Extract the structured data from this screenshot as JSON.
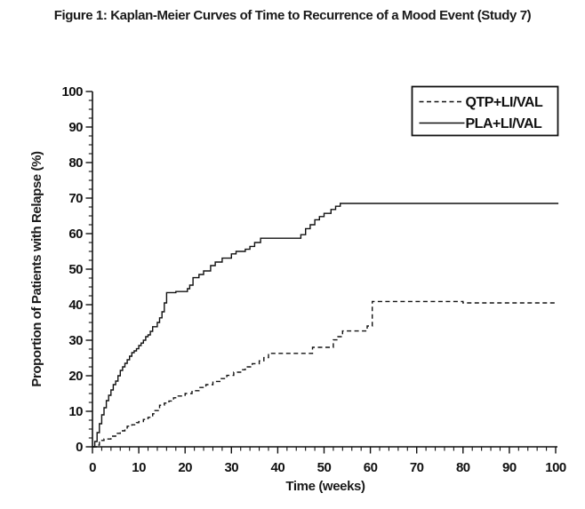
{
  "figure": {
    "title": "Figure 1: Kaplan-Meier Curves of Time to Recurrence of a Mood Event (Study 7)"
  },
  "chart_data": {
    "type": "line",
    "subtype": "kaplan-meier-step",
    "title": "Figure 1: Kaplan-Meier Curves of Time to Recurrence of a Mood Event (Study 7)",
    "xlabel": "Time (weeks)",
    "ylabel": "Proportion of Patients with Relapse (%)",
    "xlim": [
      0,
      100
    ],
    "ylim": [
      0,
      100
    ],
    "grid": false,
    "legend_position": "top-right",
    "x_major_ticks": [
      0,
      10,
      20,
      30,
      40,
      50,
      60,
      70,
      80,
      90,
      100
    ],
    "y_major_ticks": [
      0,
      10,
      20,
      30,
      40,
      50,
      60,
      70,
      80,
      90,
      100
    ],
    "x_minor_step": 2,
    "y_minor_step": 2.5,
    "colors": {
      "line": "#111111",
      "background": "#ffffff"
    },
    "series": [
      {
        "name": "QTP+LI/VAL",
        "style": "dashed",
        "points": [
          [
            0,
            0
          ],
          [
            1,
            0.5
          ],
          [
            1.5,
            1.8
          ],
          [
            2.5,
            2.2
          ],
          [
            4,
            3
          ],
          [
            5,
            3.8
          ],
          [
            6,
            4.5
          ],
          [
            7,
            5.3
          ],
          [
            7.5,
            5.8
          ],
          [
            8.5,
            6.2
          ],
          [
            9.5,
            6.8
          ],
          [
            10,
            7.1
          ],
          [
            11,
            7.7
          ],
          [
            12,
            8.3
          ],
          [
            13,
            9.3
          ],
          [
            13.5,
            10.2
          ],
          [
            14.5,
            11.7
          ],
          [
            15.5,
            12.3
          ],
          [
            16.5,
            12.9
          ],
          [
            17.5,
            13.8
          ],
          [
            18.5,
            14.3
          ],
          [
            20,
            15
          ],
          [
            21.5,
            15.8
          ],
          [
            23,
            16.7
          ],
          [
            24.5,
            17.5
          ],
          [
            26,
            18.4
          ],
          [
            27.5,
            19.2
          ],
          [
            29,
            20.1
          ],
          [
            30.5,
            21
          ],
          [
            32,
            21.7
          ],
          [
            33,
            22.5
          ],
          [
            34.5,
            23.4
          ],
          [
            36,
            24.2
          ],
          [
            37,
            25.1
          ],
          [
            38,
            26.3
          ],
          [
            47.5,
            28
          ],
          [
            52,
            30.1
          ],
          [
            53,
            31
          ],
          [
            54,
            32.6
          ],
          [
            59.3,
            34
          ],
          [
            60.4,
            40.9
          ],
          [
            80,
            40.5
          ],
          [
            100.3,
            40.5
          ]
        ]
      },
      {
        "name": "PLA+LI/VAL",
        "style": "solid",
        "points": [
          [
            0,
            0
          ],
          [
            0.5,
            1.5
          ],
          [
            1,
            4
          ],
          [
            1.5,
            6.5
          ],
          [
            2,
            9
          ],
          [
            2.5,
            11
          ],
          [
            3,
            13
          ],
          [
            3.5,
            14.5
          ],
          [
            4,
            16
          ],
          [
            4.5,
            17.5
          ],
          [
            5,
            18.5
          ],
          [
            5.5,
            20
          ],
          [
            6,
            21.5
          ],
          [
            6.5,
            22.5
          ],
          [
            7,
            23.5
          ],
          [
            7.5,
            24.5
          ],
          [
            8,
            25.5
          ],
          [
            8.5,
            26.5
          ],
          [
            9,
            27
          ],
          [
            9.5,
            27.6
          ],
          [
            10,
            28.5
          ],
          [
            10.5,
            29.2
          ],
          [
            11,
            30
          ],
          [
            11.5,
            31
          ],
          [
            12,
            31.5
          ],
          [
            12.5,
            32.5
          ],
          [
            13,
            33.8
          ],
          [
            14,
            35
          ],
          [
            14.5,
            36.3
          ],
          [
            15,
            38
          ],
          [
            15.5,
            40.5
          ],
          [
            16,
            43.4
          ],
          [
            18,
            43.7
          ],
          [
            20.5,
            44.5
          ],
          [
            21,
            45.5
          ],
          [
            21.7,
            47.6
          ],
          [
            23,
            48.5
          ],
          [
            24,
            49.5
          ],
          [
            25.5,
            51
          ],
          [
            26.5,
            52
          ],
          [
            28,
            53.1
          ],
          [
            30,
            54.3
          ],
          [
            31,
            55
          ],
          [
            33,
            55.6
          ],
          [
            34,
            56.4
          ],
          [
            35,
            57.5
          ],
          [
            36.3,
            58.7
          ],
          [
            45,
            59.7
          ],
          [
            46,
            61.4
          ],
          [
            47,
            62.5
          ],
          [
            48,
            63.9
          ],
          [
            49,
            64.8
          ],
          [
            50,
            65.7
          ],
          [
            51.5,
            66.8
          ],
          [
            52.5,
            67.7
          ],
          [
            53.5,
            68.5
          ],
          [
            100.6,
            68.5
          ]
        ]
      }
    ]
  }
}
